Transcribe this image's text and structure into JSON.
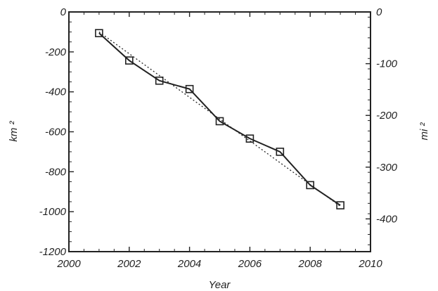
{
  "chart_data": {
    "type": "line",
    "xlabel": "Year",
    "ylabel_left": "km ²",
    "ylabel_right": "mi ²",
    "xlim": [
      2000,
      2010
    ],
    "ylim": [
      -1200,
      0
    ],
    "ylim_right": [
      -463.3,
      0
    ],
    "grid": false,
    "x_ticks": [
      2000,
      2002,
      2004,
      2006,
      2008,
      2010
    ],
    "x_tick_labels": [
      "2000",
      "2002",
      "2004",
      "2006",
      "2008",
      "2010"
    ],
    "y_ticks": [
      0,
      -200,
      -400,
      -600,
      -800,
      -1000,
      -1200
    ],
    "y_tick_labels": [
      "0",
      "-200",
      "-400",
      "-600",
      "-800",
      "-1000",
      "-1200"
    ],
    "y_right_ticks": [
      0,
      -100,
      -200,
      -300,
      -400
    ],
    "y_right_tick_labels": [
      "0",
      "-100",
      "-200",
      "-300",
      "-400"
    ],
    "series": [
      {
        "style": "solid line with open square markers",
        "color": "#222222",
        "x": [
          2001,
          2002,
          2003,
          2004,
          2005,
          2006,
          2007,
          2008,
          2009
        ],
        "y": [
          -106,
          -243,
          -344,
          -386,
          -547,
          -634,
          -700,
          -867,
          -968
        ]
      },
      {
        "style": "dotted linear trend line",
        "color": "#222222",
        "x": [
          2001,
          2009
        ],
        "y": [
          -100,
          -973
        ]
      }
    ]
  }
}
